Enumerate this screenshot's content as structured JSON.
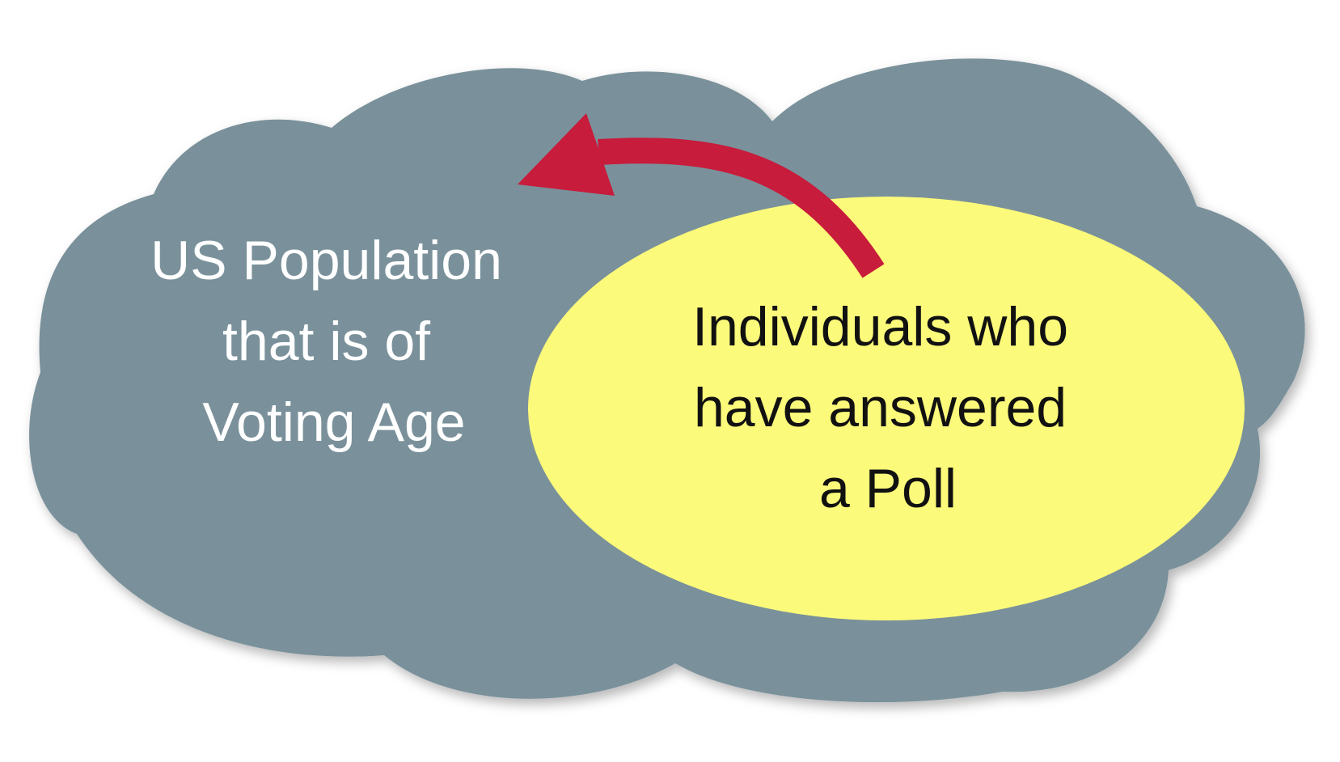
{
  "population": {
    "lines": [
      "US Population",
      "that is of",
      "Voting Age"
    ],
    "fill_color": "#7a919b",
    "text_color": "#ffffff"
  },
  "sample": {
    "lines": [
      "Individuals who",
      "have answered",
      "a Poll"
    ],
    "fill_color": "#fcfa7a",
    "text_color": "#111111"
  },
  "arrow": {
    "color": "#c71c3c",
    "direction": "from sample to population"
  }
}
